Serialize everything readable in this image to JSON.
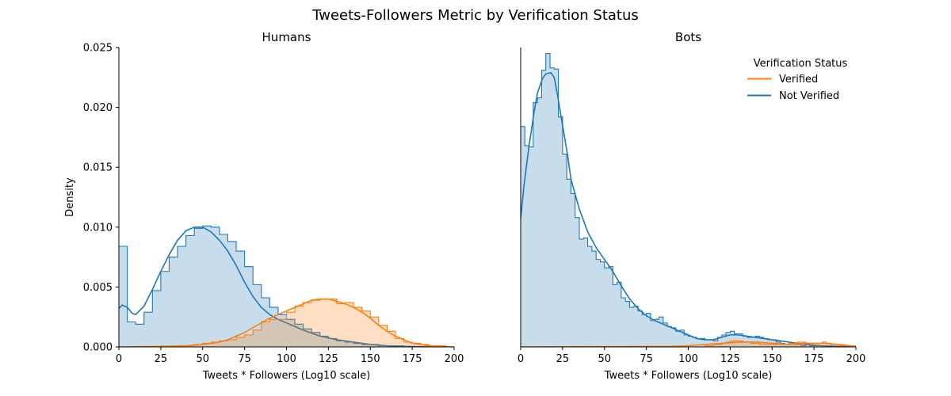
{
  "chart_data": {
    "type": "histogram-kde",
    "title": "Tweets-Followers Metric by Verification Status",
    "xlabel": "Tweets * Followers (Log10 scale)",
    "ylabel": "Density",
    "xlim": [
      0,
      200
    ],
    "ylim": [
      0,
      0.025
    ],
    "xticks": [
      0,
      25,
      50,
      75,
      100,
      125,
      150,
      175,
      200
    ],
    "xtick_labels": [
      "0",
      "25",
      "50",
      "75",
      "100",
      "125",
      "150",
      "175",
      "200"
    ],
    "yticks": [
      0,
      0.005,
      0.01,
      0.015,
      0.02,
      0.025
    ],
    "ytick_labels": [
      "0.000",
      "0.005",
      "0.010",
      "0.015",
      "0.020",
      "0.025"
    ],
    "legend": {
      "title": "Verification Status",
      "location": "top-right of Bots panel",
      "entries": [
        {
          "label": "Verified",
          "color": "#ff7f0e"
        },
        {
          "label": "Not Verified",
          "color": "#1f77b4"
        }
      ]
    },
    "colors": {
      "verified": "#ff7f0e",
      "not_verified": "#1f77b4"
    },
    "panels": [
      {
        "title": "Humans",
        "bin_edges": [
          0,
          5,
          10,
          15,
          20,
          25,
          30,
          35,
          40,
          45,
          50,
          55,
          60,
          65,
          70,
          75,
          80,
          85,
          90,
          95,
          100,
          105,
          110,
          115,
          120,
          125,
          130,
          135,
          140,
          145,
          150,
          155,
          160,
          165,
          170,
          175,
          180,
          185,
          190,
          195,
          200
        ],
        "series": [
          {
            "name": "Not Verified",
            "hist": [
              0.0084,
              0.0021,
              0.0019,
              0.0029,
              0.0047,
              0.0063,
              0.0075,
              0.0084,
              0.0093,
              0.0099,
              0.0101,
              0.01,
              0.0094,
              0.0088,
              0.008,
              0.0067,
              0.0052,
              0.0041,
              0.0033,
              0.0027,
              0.0023,
              0.0019,
              0.0015,
              0.0012,
              0.0009,
              0.0007,
              0.0005,
              0.0004,
              0.0003,
              0.0002,
              0.0002,
              0.0001,
              0.0001,
              0.0001,
              0.0,
              0.0,
              0.0,
              0.0,
              0.0,
              0.0
            ],
            "kde_x": [
              0,
              2,
              5,
              8,
              10,
              15,
              20,
              25,
              30,
              35,
              40,
              45,
              50,
              55,
              60,
              65,
              70,
              75,
              80,
              85,
              90,
              95,
              100,
              110,
              120,
              130,
              140,
              150,
              160,
              170,
              180,
              190,
              200
            ],
            "kde_y": [
              0.0032,
              0.0035,
              0.0033,
              0.0028,
              0.0027,
              0.0034,
              0.0048,
              0.0063,
              0.0077,
              0.0089,
              0.0097,
              0.01,
              0.01,
              0.0096,
              0.0089,
              0.008,
              0.0068,
              0.0054,
              0.0042,
              0.0033,
              0.0027,
              0.0023,
              0.002,
              0.0014,
              0.0009,
              0.0006,
              0.0004,
              0.0002,
              0.0001,
              5e-05,
              2e-05,
              0.0,
              0.0
            ]
          },
          {
            "name": "Verified",
            "hist": [
              0.0,
              0.0,
              0.0,
              0.0,
              0.0,
              0.0,
              0.0,
              0.0001,
              0.0001,
              0.0002,
              0.0003,
              0.0004,
              0.0005,
              0.0006,
              0.0008,
              0.001,
              0.0014,
              0.0021,
              0.0023,
              0.0023,
              0.0029,
              0.0034,
              0.0037,
              0.0039,
              0.004,
              0.004,
              0.0036,
              0.0037,
              0.0033,
              0.003,
              0.0025,
              0.0018,
              0.0013,
              0.0007,
              0.0004,
              0.0003,
              0.0002,
              0.0001,
              0.0001,
              0.0
            ],
            "kde_x": [
              0,
              20,
              40,
              50,
              60,
              65,
              70,
              75,
              80,
              85,
              90,
              95,
              100,
              105,
              110,
              115,
              120,
              125,
              130,
              135,
              140,
              145,
              150,
              155,
              160,
              165,
              170,
              175,
              180,
              185,
              190,
              200
            ],
            "kde_y": [
              0.0,
              3e-05,
              0.0001,
              0.0002,
              0.0004,
              0.0006,
              0.0009,
              0.0012,
              0.0016,
              0.002,
              0.0024,
              0.0027,
              0.003,
              0.0033,
              0.0036,
              0.0039,
              0.004,
              0.004,
              0.0038,
              0.0036,
              0.0033,
              0.0029,
              0.0024,
              0.0018,
              0.0013,
              0.0009,
              0.0006,
              0.0003,
              0.0002,
              0.0001,
              5e-05,
              0.0
            ]
          }
        ]
      },
      {
        "title": "Bots",
        "bin_edges": [
          0,
          2.5,
          5,
          7.5,
          10,
          12.5,
          15,
          17.5,
          20,
          22.5,
          25,
          27.5,
          30,
          32.5,
          35,
          37.5,
          40,
          42.5,
          45,
          47.5,
          50,
          52.5,
          55,
          57.5,
          60,
          62.5,
          65,
          67.5,
          70,
          72.5,
          75,
          77.5,
          80,
          82.5,
          85,
          87.5,
          90,
          92.5,
          95,
          97.5,
          100,
          102.5,
          105,
          107.5,
          110,
          112.5,
          115,
          117.5,
          120,
          122.5,
          125,
          127.5,
          130,
          132.5,
          135,
          137.5,
          140,
          142.5,
          145,
          147.5,
          150,
          152.5,
          155,
          157.5,
          160,
          162.5,
          165,
          167.5,
          170,
          172.5,
          175,
          177.5,
          180,
          182.5,
          185,
          187.5,
          190,
          192.5,
          195,
          197.5,
          200
        ],
        "series": [
          {
            "name": "Not Verified",
            "hist": [
              0.0184,
              0.0168,
              0.0167,
              0.0204,
              0.0208,
              0.0231,
              0.0245,
              0.0233,
              0.0232,
              0.0192,
              0.0161,
              0.014,
              0.0128,
              0.0108,
              0.009,
              0.0091,
              0.0084,
              0.008,
              0.0073,
              0.0071,
              0.0066,
              0.0067,
              0.0052,
              0.0054,
              0.0041,
              0.0038,
              0.0033,
              0.0034,
              0.003,
              0.0027,
              0.0028,
              0.0022,
              0.0023,
              0.0025,
              0.002,
              0.0017,
              0.0016,
              0.0013,
              0.0014,
              0.001,
              0.0009,
              0.0008,
              0.0007,
              0.0007,
              0.0006,
              0.0006,
              0.0005,
              0.0008,
              0.001,
              0.0012,
              0.0013,
              0.0011,
              0.0011,
              0.0009,
              0.0008,
              0.0008,
              0.0009,
              0.0008,
              0.0007,
              0.0006,
              0.0006,
              0.0004,
              0.0003,
              0.0002,
              0.0003,
              0.0002,
              0.0002,
              0.0001,
              0.0002,
              0.0001,
              0.0001,
              0.0001,
              0.0001,
              0.0001,
              0.0,
              0.0,
              0.0,
              0.0,
              0.0,
              0.0
            ],
            "kde_x": [
              0,
              2,
              5,
              8,
              10,
              13,
              15,
              18,
              20,
              22,
              25,
              28,
              30,
              35,
              40,
              45,
              50,
              55,
              60,
              65,
              70,
              75,
              80,
              85,
              90,
              95,
              100,
              105,
              110,
              115,
              120,
              125,
              130,
              135,
              140,
              145,
              150,
              160,
              170,
              180,
              190,
              200
            ],
            "kde_y": [
              0.0107,
              0.0135,
              0.0168,
              0.0196,
              0.0212,
              0.0224,
              0.0228,
              0.0229,
              0.0225,
              0.021,
              0.0185,
              0.016,
              0.014,
              0.0115,
              0.0096,
              0.0083,
              0.0073,
              0.0063,
              0.0051,
              0.004,
              0.0032,
              0.0026,
              0.0022,
              0.0019,
              0.0016,
              0.0013,
              0.001,
              0.0007,
              0.0006,
              0.0006,
              0.0008,
              0.001,
              0.001,
              0.0009,
              0.0008,
              0.0007,
              0.0006,
              0.0004,
              0.0002,
              0.0001,
              5e-05,
              0.0
            ]
          },
          {
            "name": "Verified",
            "hist": [
              0.0,
              0.0,
              0.0,
              0.0,
              0.0,
              0.0,
              0.0,
              0.0,
              0.0,
              0.0,
              0.0,
              0.0,
              0.0,
              0.0,
              0.0,
              0.0,
              0.0,
              0.0,
              0.0,
              0.0,
              0.0,
              0.0,
              0.0,
              0.0,
              0.0,
              0.0,
              0.0,
              0.0,
              0.0,
              0.0,
              0.0,
              0.0,
              0.0,
              0.0,
              0.0,
              0.0,
              0.0,
              0.0,
              0.0,
              0.0,
              0.0,
              0.0,
              0.0,
              0.0,
              0.0001,
              0.0001,
              0.0002,
              0.0002,
              0.0003,
              0.0004,
              0.0005,
              0.0005,
              0.0005,
              0.0004,
              0.0004,
              0.0003,
              0.0003,
              0.0002,
              0.0002,
              0.0002,
              0.0002,
              0.0002,
              0.0002,
              0.0002,
              0.0003,
              0.0003,
              0.0004,
              0.0004,
              0.0003,
              0.0003,
              0.0003,
              0.0003,
              0.0004,
              0.0003,
              0.0002,
              0.0002,
              0.0001,
              0.0001,
              0.0001,
              0.0001
            ],
            "kde_x": [
              0,
              50,
              90,
              100,
              110,
              120,
              130,
              140,
              150,
              160,
              170,
              180,
              190,
              200
            ],
            "kde_y": [
              0.0,
              2e-05,
              5e-05,
              0.0001,
              0.0002,
              0.0003,
              0.0004,
              0.0004,
              0.0003,
              0.0002,
              0.0003,
              0.0003,
              0.0002,
              5e-05
            ]
          }
        ]
      }
    ]
  }
}
